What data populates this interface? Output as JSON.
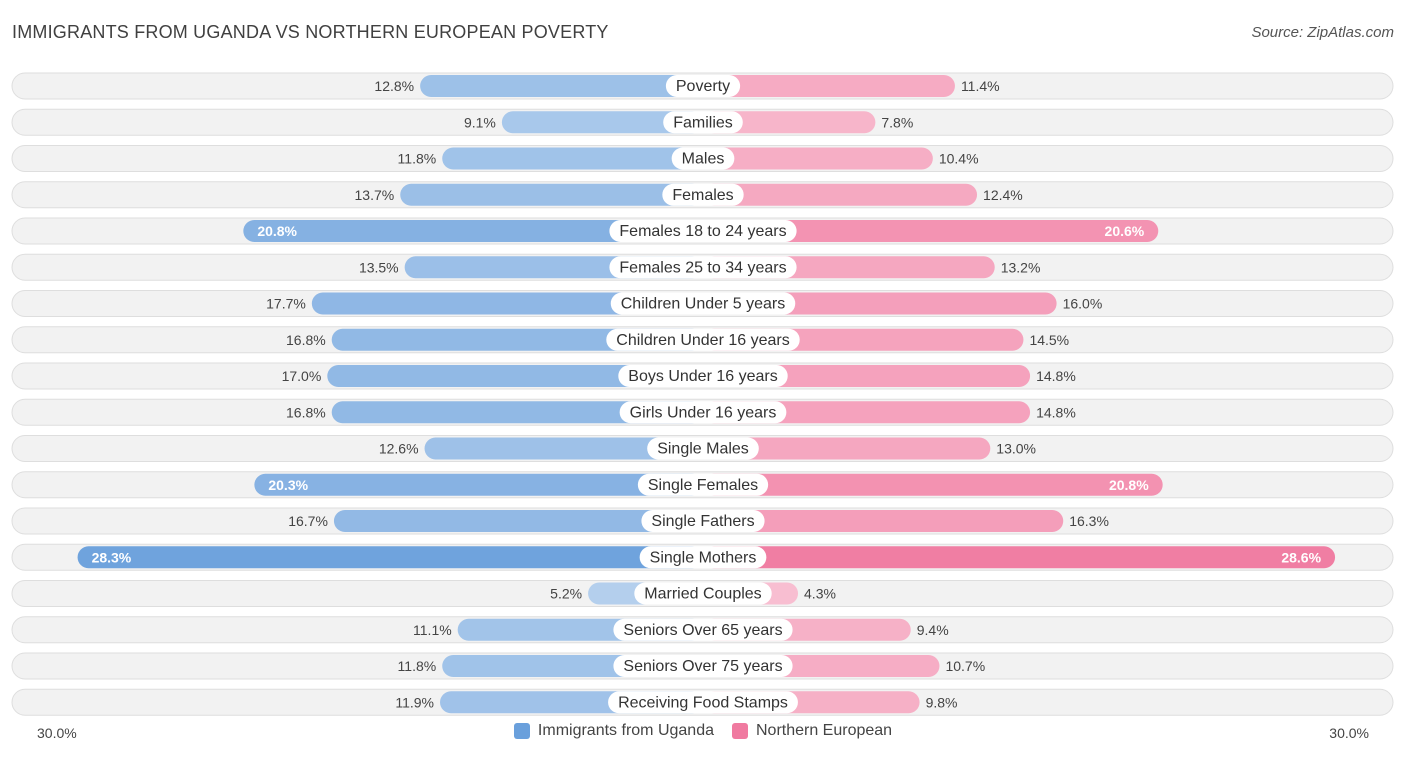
{
  "title": "IMMIGRANTS FROM UGANDA VS NORTHERN EUROPEAN POVERTY",
  "source": "Source: ZipAtlas.com",
  "colors": {
    "left": "#6aa0dc",
    "right": "#f07aa0"
  },
  "chart_data": {
    "type": "bar",
    "orientation": "horizontal-diverging",
    "title": "IMMIGRANTS FROM UGANDA VS NORTHERN EUROPEAN POVERTY",
    "categories": [
      "Poverty",
      "Families",
      "Males",
      "Females",
      "Females 18 to 24 years",
      "Females 25 to 34 years",
      "Children Under 5 years",
      "Children Under 16 years",
      "Boys Under 16 years",
      "Girls Under 16 years",
      "Single Males",
      "Single Females",
      "Single Fathers",
      "Single Mothers",
      "Married Couples",
      "Seniors Over 65 years",
      "Seniors Over 75 years",
      "Receiving Food Stamps"
    ],
    "series": [
      {
        "name": "Immigrants from Uganda",
        "values": [
          12.8,
          9.1,
          11.8,
          13.7,
          20.8,
          13.5,
          17.7,
          16.8,
          17.0,
          16.8,
          12.6,
          20.3,
          16.7,
          28.3,
          5.2,
          11.1,
          11.8,
          11.9
        ],
        "labels": [
          "12.8%",
          "9.1%",
          "11.8%",
          "13.7%",
          "20.8%",
          "13.5%",
          "17.7%",
          "16.8%",
          "17.0%",
          "16.8%",
          "12.6%",
          "20.3%",
          "16.7%",
          "28.3%",
          "5.2%",
          "11.1%",
          "11.8%",
          "11.9%"
        ]
      },
      {
        "name": "Northern European",
        "values": [
          11.4,
          7.8,
          10.4,
          12.4,
          20.6,
          13.2,
          16.0,
          14.5,
          14.8,
          14.8,
          13.0,
          20.8,
          16.3,
          28.6,
          4.3,
          9.4,
          10.7,
          9.8
        ],
        "labels": [
          "11.4%",
          "7.8%",
          "10.4%",
          "12.4%",
          "20.6%",
          "13.2%",
          "16.0%",
          "14.5%",
          "14.8%",
          "14.8%",
          "13.0%",
          "20.8%",
          "16.3%",
          "28.6%",
          "4.3%",
          "9.4%",
          "10.7%",
          "9.8%"
        ]
      }
    ],
    "xlim": [
      -30,
      30
    ],
    "axis_labels": {
      "left": "30.0%",
      "right": "30.0%"
    },
    "legend": [
      "Immigrants from Uganda",
      "Northern European"
    ],
    "legend_position": "bottom-center"
  }
}
